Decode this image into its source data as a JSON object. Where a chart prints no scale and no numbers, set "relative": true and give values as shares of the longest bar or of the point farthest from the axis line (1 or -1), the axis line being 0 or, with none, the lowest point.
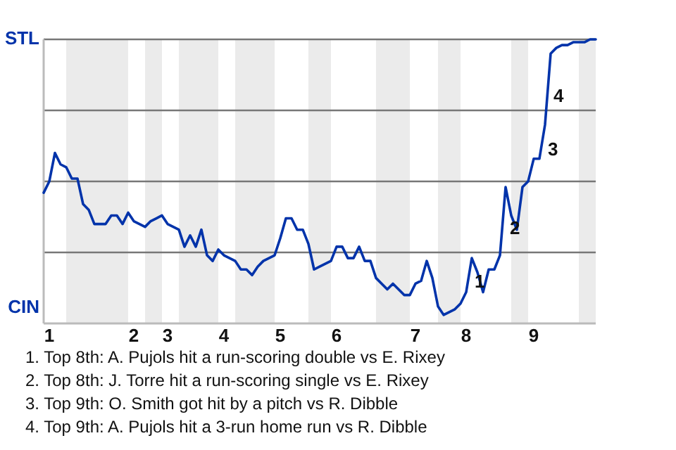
{
  "chart_data": {
    "type": "line",
    "relative": true,
    "categories": [
      null,
      "1",
      null,
      null,
      null,
      null,
      null,
      null,
      null,
      null,
      null,
      null,
      null,
      null,
      null,
      null,
      "2",
      null,
      null,
      null,
      null,
      null,
      "3",
      null,
      null,
      null,
      null,
      null,
      null,
      null,
      null,
      null,
      "4",
      null,
      null,
      null,
      null,
      null,
      null,
      null,
      null,
      null,
      "5",
      null,
      null,
      null,
      null,
      null,
      null,
      null,
      null,
      null,
      "6",
      null,
      null,
      null,
      null,
      null,
      null,
      null,
      null,
      null,
      null,
      null,
      null,
      null,
      "7",
      null,
      null,
      null,
      null,
      null,
      null,
      null,
      null,
      "8",
      null,
      null,
      null,
      null,
      null,
      null,
      null,
      null,
      null,
      null,
      null,
      "9",
      null,
      null,
      null,
      null,
      null,
      null,
      null,
      null,
      null,
      null,
      null
    ],
    "series": [
      {
        "color": "#0033aa",
        "values": [
          0.46,
          0.5,
          0.6,
          0.56,
          0.55,
          0.51,
          0.51,
          0.42,
          0.4,
          0.35,
          0.35,
          0.35,
          0.38,
          0.38,
          0.35,
          0.39,
          0.36,
          0.35,
          0.34,
          0.36,
          0.37,
          0.38,
          0.35,
          0.34,
          0.33,
          0.27,
          0.31,
          0.27,
          0.33,
          0.24,
          0.22,
          0.26,
          0.24,
          0.23,
          0.22,
          0.19,
          0.19,
          0.17,
          0.2,
          0.22,
          0.23,
          0.24,
          0.3,
          0.37,
          0.37,
          0.33,
          0.33,
          0.28,
          0.19,
          0.2,
          0.21,
          0.22,
          0.27,
          0.27,
          0.23,
          0.23,
          0.27,
          0.22,
          0.22,
          0.16,
          0.14,
          0.12,
          0.14,
          0.12,
          0.1,
          0.1,
          0.14,
          0.15,
          0.22,
          0.16,
          0.06,
          0.03,
          0.04,
          0.05,
          0.07,
          0.11,
          0.23,
          0.18,
          0.11,
          0.19,
          0.19,
          0.24,
          0.48,
          0.38,
          0.33,
          0.48,
          0.5,
          0.58,
          0.58,
          0.7,
          0.95,
          0.97,
          0.98,
          0.98,
          0.99,
          0.99,
          0.99,
          1,
          1
        ],
        "line_style": "solid"
      }
    ],
    "ref_lines": [
      {
        "axis": "y",
        "value": 1,
        "label": "STL",
        "color": "#777777"
      },
      {
        "axis": "y",
        "value": 0.75,
        "color": "#777777"
      },
      {
        "axis": "y",
        "value": 0.5,
        "color": "#777777"
      },
      {
        "axis": "y",
        "value": 0.25,
        "color": "#777777"
      }
    ],
    "marker": "none",
    "annotations": [
      "CIN",
      "1",
      "2",
      "3",
      "4",
      "1. Top 8th: A. Pujols hit a run-scoring double vs E. Rixey",
      "2. Top 8th: J. Torre hit a run-scoring single vs E. Rixey",
      "3. Top 9th: O. Smith got hit by a pitch vs R. Dibble",
      "4. Top 9th: A. Pujols hit a 3-run home run vs R. Dibble"
    ]
  }
}
